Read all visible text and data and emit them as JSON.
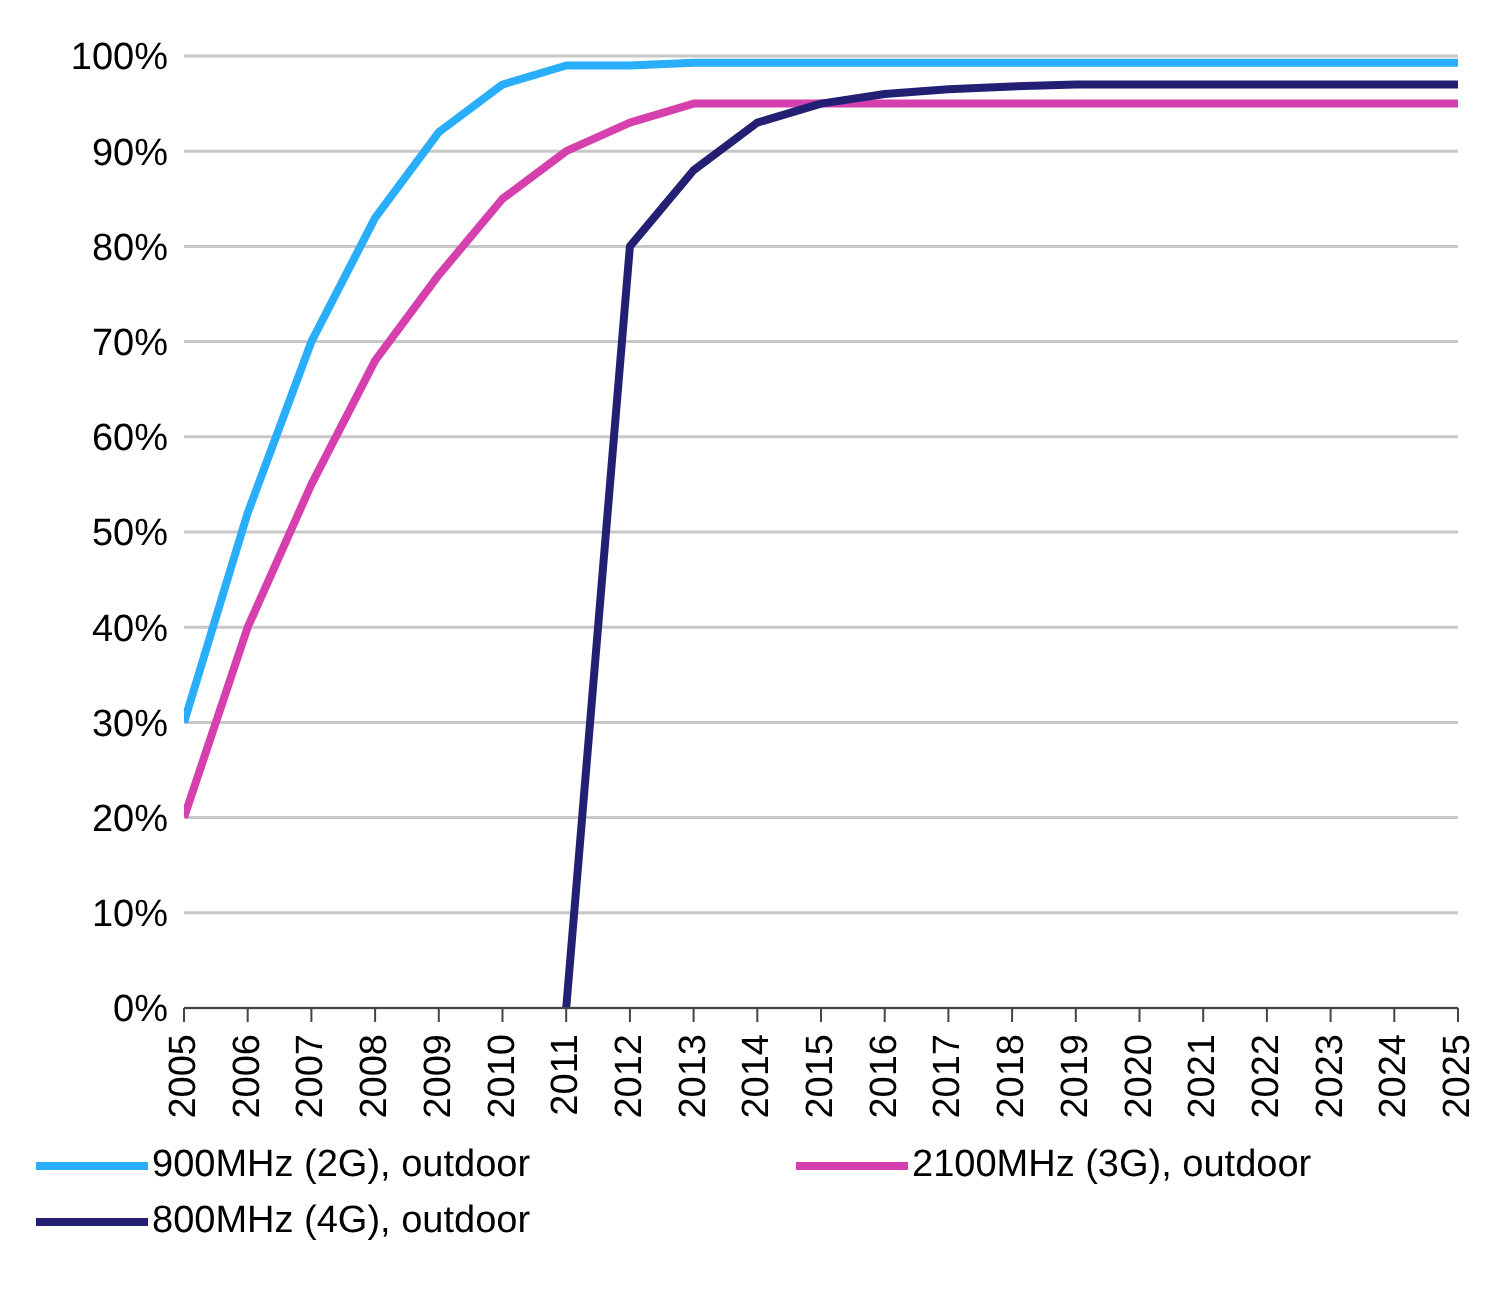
{
  "chart_data": {
    "type": "line",
    "x": [
      2005,
      2006,
      2007,
      2008,
      2009,
      2010,
      2011,
      2012,
      2013,
      2014,
      2015,
      2016,
      2017,
      2018,
      2019,
      2020,
      2021,
      2022,
      2023,
      2024,
      2025
    ],
    "series": [
      {
        "name": "900MHz (2G), outdoor",
        "color": "#29aefc",
        "values": [
          30,
          52,
          70,
          83,
          92,
          97,
          99,
          99,
          99.3,
          99.3,
          99.3,
          99.3,
          99.3,
          99.3,
          99.3,
          99.3,
          99.3,
          99.3,
          99.3,
          99.3,
          99.3
        ]
      },
      {
        "name": "2100MHz (3G), outdoor",
        "color": "#d63fae",
        "values": [
          20,
          40,
          55,
          68,
          77,
          85,
          90,
          93,
          95,
          95,
          95,
          95,
          95,
          95,
          95,
          95,
          95,
          95,
          95,
          95,
          95
        ]
      },
      {
        "name": "800MHz (4G), outdoor",
        "color": "#232073",
        "values": [
          null,
          null,
          null,
          null,
          null,
          null,
          0,
          80,
          88,
          93,
          95,
          96,
          96.5,
          96.8,
          97,
          97,
          97,
          97,
          97,
          97,
          97
        ]
      }
    ],
    "xlim": [
      2005,
      2025
    ],
    "xticks": [
      2005,
      2006,
      2007,
      2008,
      2009,
      2010,
      2011,
      2012,
      2013,
      2014,
      2015,
      2016,
      2017,
      2018,
      2019,
      2020,
      2021,
      2022,
      2023,
      2024,
      2025
    ],
    "ylim": [
      0,
      100
    ],
    "yticks": [
      {
        "value": 0,
        "label": "0%"
      },
      {
        "value": 10,
        "label": "10%"
      },
      {
        "value": 20,
        "label": "20%"
      },
      {
        "value": 30,
        "label": "30%"
      },
      {
        "value": 40,
        "label": "40%"
      },
      {
        "value": 50,
        "label": "50%"
      },
      {
        "value": 60,
        "label": "60%"
      },
      {
        "value": 70,
        "label": "70%"
      },
      {
        "value": 80,
        "label": "80%"
      },
      {
        "value": 90,
        "label": "90%"
      },
      {
        "value": 100,
        "label": "100%"
      }
    ],
    "grid": "y",
    "legend": "bottom",
    "marker": "none",
    "line_style": "solid"
  }
}
